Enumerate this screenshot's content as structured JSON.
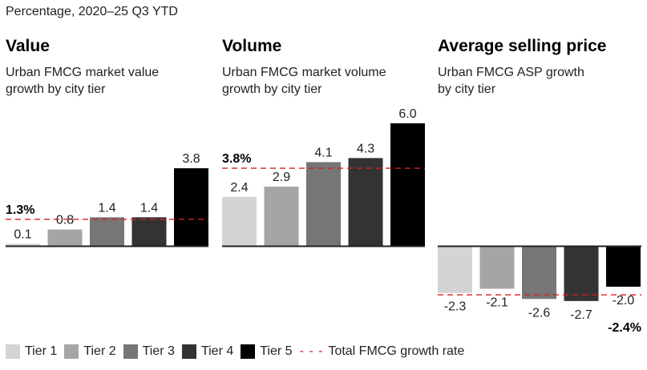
{
  "unit_label": "Percentage, 2020–25 Q3 YTD",
  "legend": {
    "tiers": [
      {
        "label": "Tier 1",
        "color": "#d4d4d4"
      },
      {
        "label": "Tier 2",
        "color": "#a5a5a5"
      },
      {
        "label": "Tier 3",
        "color": "#767676"
      },
      {
        "label": "Tier 4",
        "color": "#333333"
      },
      {
        "label": "Tier 5",
        "color": "#000000"
      }
    ],
    "line_symbol": "- - -",
    "line_label": "Total FMCG growth rate",
    "line_color": "#d62020"
  },
  "chart_data": [
    {
      "type": "bar",
      "title": "Value",
      "subtitle": [
        "Urban FMCG market value",
        "growth by city tier"
      ],
      "categories": [
        "Tier 1",
        "Tier 2",
        "Tier 3",
        "Tier 4",
        "Tier 5"
      ],
      "values": [
        0.1,
        0.8,
        1.4,
        1.4,
        3.8
      ],
      "value_labels": [
        "0.1",
        "0.8",
        "1.4",
        "1.4",
        "3.8"
      ],
      "reference_line": {
        "label": "Total FMCG growth rate",
        "value": 1.3,
        "text": "1.3%"
      }
    },
    {
      "type": "bar",
      "title": "Volume",
      "subtitle": [
        "Urban FMCG market volume",
        "growth by city tier"
      ],
      "categories": [
        "Tier 1",
        "Tier 2",
        "Tier 3",
        "Tier 4",
        "Tier 5"
      ],
      "values": [
        2.4,
        2.9,
        4.1,
        4.3,
        6.0
      ],
      "value_labels": [
        "2.4",
        "2.9",
        "4.1",
        "4.3",
        "6.0"
      ],
      "reference_line": {
        "label": "Total FMCG growth rate",
        "value": 3.8,
        "text": "3.8%"
      }
    },
    {
      "type": "bar",
      "title": "Average selling price",
      "subtitle": [
        "Urban FMCG ASP growth",
        "by city tier"
      ],
      "categories": [
        "Tier 1",
        "Tier 2",
        "Tier 3",
        "Tier 4",
        "Tier 5"
      ],
      "values": [
        -2.3,
        -2.1,
        -2.6,
        -2.7,
        -2.0
      ],
      "value_labels": [
        "-2.3",
        "-2.1",
        "-2.6",
        "-2.7",
        "-2.0"
      ],
      "reference_line": {
        "label": "Total FMCG growth rate",
        "value": -2.4,
        "text": "-2.4%"
      }
    }
  ]
}
